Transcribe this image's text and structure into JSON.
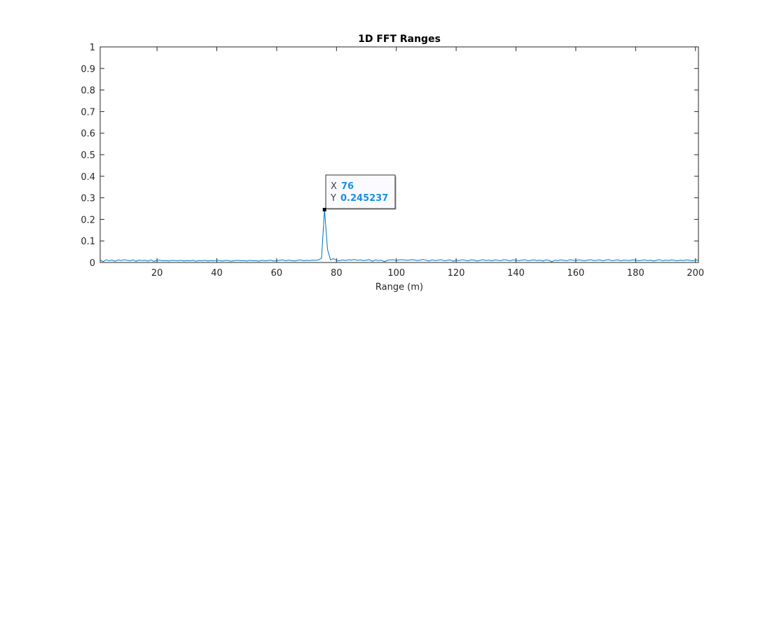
{
  "chart_data": {
    "type": "line",
    "title": "1D FFT Ranges",
    "xlabel": "Range (m)",
    "ylabel": "",
    "xlim": [
      1,
      201
    ],
    "ylim": [
      0,
      1
    ],
    "xticks": [
      "20",
      "40",
      "60",
      "80",
      "100",
      "120",
      "140",
      "160",
      "180",
      "200"
    ],
    "yticks": [
      "0",
      "0.1",
      "0.2",
      "0.3",
      "0.4",
      "0.5",
      "0.6",
      "0.7",
      "0.8",
      "0.9",
      "1"
    ],
    "grid": false,
    "series": [
      {
        "color": "#0072bd",
        "x_start": 1,
        "x_step": 1,
        "values": [
          0.012,
          0.004,
          0.013,
          0.008,
          0.011,
          0.006,
          0.012,
          0.009,
          0.013,
          0.01,
          0.008,
          0.012,
          0.006,
          0.011,
          0.009,
          0.01,
          0.007,
          0.012,
          0.005,
          0.011,
          0.01,
          0.008,
          0.009,
          0.007,
          0.01,
          0.009,
          0.008,
          0.01,
          0.007,
          0.009,
          0.008,
          0.01,
          0.006,
          0.009,
          0.008,
          0.01,
          0.007,
          0.009,
          0.008,
          0.01,
          0.009,
          0.007,
          0.01,
          0.008,
          0.006,
          0.009,
          0.01,
          0.008,
          0.009,
          0.007,
          0.01,
          0.008,
          0.009,
          0.006,
          0.01,
          0.008,
          0.009,
          0.011,
          0.007,
          0.009,
          0.01,
          0.012,
          0.008,
          0.011,
          0.009,
          0.007,
          0.01,
          0.012,
          0.008,
          0.01,
          0.009,
          0.011,
          0.01,
          0.012,
          0.02,
          0.245237,
          0.06,
          0.012,
          0.018,
          0.01,
          0.008,
          0.012,
          0.009,
          0.013,
          0.011,
          0.014,
          0.01,
          0.012,
          0.009,
          0.011,
          0.013,
          0.006,
          0.012,
          0.009,
          0.011,
          0.004,
          0.01,
          0.012,
          0.013,
          0.009,
          0.012,
          0.013,
          0.011,
          0.01,
          0.013,
          0.012,
          0.009,
          0.011,
          0.014,
          0.01,
          0.007,
          0.012,
          0.009,
          0.011,
          0.013,
          0.008,
          0.01,
          0.012,
          0.006,
          0.011,
          0.009,
          0.013,
          0.01,
          0.008,
          0.012,
          0.011,
          0.007,
          0.01,
          0.013,
          0.009,
          0.011,
          0.008,
          0.012,
          0.01,
          0.009,
          0.013,
          0.011,
          0.008,
          0.012,
          0.01,
          0.009,
          0.011,
          0.013,
          0.008,
          0.01,
          0.012,
          0.009,
          0.011,
          0.007,
          0.012,
          0.01,
          0.004,
          0.011,
          0.009,
          0.012,
          0.01,
          0.008,
          0.013,
          0.011,
          0.009,
          0.012,
          0.01,
          0.008,
          0.011,
          0.013,
          0.009,
          0.01,
          0.012,
          0.008,
          0.011,
          0.013,
          0.009,
          0.01,
          0.012,
          0.008,
          0.011,
          0.01,
          0.009,
          0.012,
          0.011,
          0.008,
          0.01,
          0.012,
          0.009,
          0.011,
          0.007,
          0.01,
          0.013,
          0.008,
          0.011,
          0.009,
          0.012,
          0.01,
          0.008,
          0.011,
          0.009,
          0.012,
          0.01,
          0.008,
          0.011,
          0.012
        ]
      }
    ],
    "datatip": {
      "x_label": "X",
      "x_value": "76",
      "y_label": "Y",
      "y_value": "0.245237",
      "x": 76,
      "y": 0.245237
    }
  },
  "colors": {
    "series": "#0072bd",
    "datatip_value": "#1a8fe0",
    "axes": "#262626"
  }
}
